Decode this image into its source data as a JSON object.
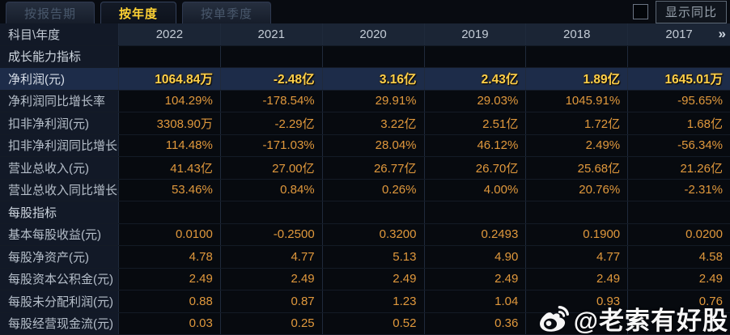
{
  "tabs": [
    {
      "label": "按报告期",
      "active": false
    },
    {
      "label": "按年度",
      "active": true
    },
    {
      "label": "按单季度",
      "active": false
    }
  ],
  "controls": {
    "show_yoy_label": "显示同比",
    "checkbox_checked": false
  },
  "table": {
    "corner_label": "科目\\年度",
    "years": [
      "2022",
      "2021",
      "2020",
      "2019",
      "2018",
      "2017"
    ],
    "more_icon": "»",
    "rows": [
      {
        "type": "section",
        "label": "成长能力指标",
        "values": [
          "",
          "",
          "",
          "",
          "",
          ""
        ]
      },
      {
        "type": "highlight",
        "label": "净利润(元)",
        "values": [
          "1064.84万",
          "-2.48亿",
          "3.16亿",
          "2.43亿",
          "1.89亿",
          "1645.01万"
        ]
      },
      {
        "type": "data",
        "label": "净利润同比增长率",
        "values": [
          "104.29%",
          "-178.54%",
          "29.91%",
          "29.03%",
          "1045.91%",
          "-95.65%"
        ]
      },
      {
        "type": "data",
        "label": "扣非净利润(元)",
        "values": [
          "3308.90万",
          "-2.29亿",
          "3.22亿",
          "2.51亿",
          "1.72亿",
          "1.68亿"
        ]
      },
      {
        "type": "data",
        "label": "扣非净利润同比增长率",
        "values": [
          "114.48%",
          "-171.03%",
          "28.04%",
          "46.12%",
          "2.49%",
          "-56.34%"
        ]
      },
      {
        "type": "data",
        "label": "营业总收入(元)",
        "values": [
          "41.43亿",
          "27.00亿",
          "26.77亿",
          "26.70亿",
          "25.68亿",
          "21.26亿"
        ]
      },
      {
        "type": "data",
        "label": "营业总收入同比增长率",
        "values": [
          "53.46%",
          "0.84%",
          "0.26%",
          "4.00%",
          "20.76%",
          "-2.31%"
        ]
      },
      {
        "type": "section",
        "label": "每股指标",
        "values": [
          "",
          "",
          "",
          "",
          "",
          ""
        ]
      },
      {
        "type": "data",
        "label": "基本每股收益(元)",
        "values": [
          "0.0100",
          "-0.2500",
          "0.3200",
          "0.2493",
          "0.1900",
          "0.0200"
        ]
      },
      {
        "type": "data",
        "label": "每股净资产(元)",
        "values": [
          "4.78",
          "4.77",
          "5.13",
          "4.90",
          "4.77",
          "4.58"
        ]
      },
      {
        "type": "data",
        "label": "每股资本公积金(元)",
        "values": [
          "2.49",
          "2.49",
          "2.49",
          "2.49",
          "2.49",
          "2.49"
        ]
      },
      {
        "type": "data",
        "label": "每股未分配利润(元)",
        "values": [
          "0.88",
          "0.87",
          "1.23",
          "1.04",
          "0.93",
          "0.76"
        ]
      },
      {
        "type": "data",
        "label": "每股经营现金流(元)",
        "values": [
          "0.03",
          "0.25",
          "0.52",
          "0.36",
          "",
          ""
        ]
      }
    ]
  },
  "watermark": {
    "text": "@老索有好股",
    "icon": "weibo-logo"
  },
  "colors": {
    "accent_gold": "#ffd234",
    "value_orange": "#e0983c",
    "highlight_row_bg": "#1d2c49",
    "header_bg": "#1b2535"
  }
}
